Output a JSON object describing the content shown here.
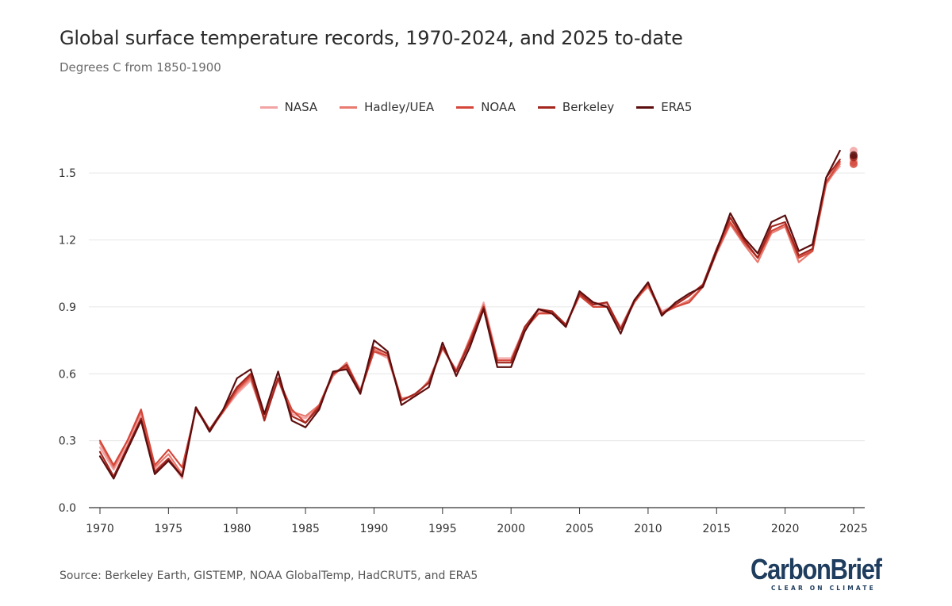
{
  "chart_data": {
    "type": "line",
    "title": "Global surface temperature records, 1970-2024, and 2025 to-date",
    "subtitle": "Degrees C from 1850-1900",
    "xlabel": "",
    "ylabel": "",
    "xlim": [
      1970,
      2025
    ],
    "ylim": [
      0,
      1.6
    ],
    "yticks": [
      0.0,
      0.3,
      0.6,
      0.9,
      1.2,
      1.5
    ],
    "ytick_labels": [
      "0.0",
      "0.3",
      "0.6",
      "0.9",
      "1.2",
      "1.5"
    ],
    "xticks": [
      1970,
      1975,
      1980,
      1985,
      1990,
      1995,
      2000,
      2005,
      2010,
      2015,
      2020,
      2025
    ],
    "xtick_labels": [
      "1970",
      "1975",
      "1980",
      "1985",
      "1990",
      "1995",
      "2000",
      "2005",
      "2010",
      "2015",
      "2020",
      "2025"
    ],
    "grid": true,
    "legend_position": "top-center",
    "x": [
      1970,
      1971,
      1972,
      1973,
      1974,
      1975,
      1976,
      1977,
      1978,
      1979,
      1980,
      1981,
      1982,
      1983,
      1984,
      1985,
      1986,
      1987,
      1988,
      1989,
      1990,
      1991,
      1992,
      1993,
      1994,
      1995,
      1996,
      1997,
      1998,
      1999,
      2000,
      2001,
      2002,
      2003,
      2004,
      2005,
      2006,
      2007,
      2008,
      2009,
      2010,
      2011,
      2012,
      2013,
      2014,
      2015,
      2016,
      2017,
      2018,
      2019,
      2020,
      2021,
      2022,
      2023,
      2024
    ],
    "series": [
      {
        "name": "NASA",
        "color": "#f2a3a3",
        "values": [
          0.27,
          0.17,
          0.28,
          0.42,
          0.17,
          0.22,
          0.13,
          0.45,
          0.34,
          0.43,
          0.51,
          0.57,
          0.4,
          0.57,
          0.42,
          0.4,
          0.46,
          0.6,
          0.64,
          0.53,
          0.7,
          0.67,
          0.48,
          0.51,
          0.56,
          0.71,
          0.62,
          0.75,
          0.92,
          0.67,
          0.67,
          0.81,
          0.88,
          0.88,
          0.82,
          0.96,
          0.92,
          0.91,
          0.81,
          0.93,
          1.0,
          0.88,
          0.91,
          0.95,
          1.0,
          1.15,
          1.27,
          1.19,
          1.12,
          1.24,
          1.26,
          1.12,
          1.16,
          1.46,
          1.53
        ],
        "end": 1.6
      },
      {
        "name": "Hadley/UEA",
        "color": "#e87a6f",
        "values": [
          0.29,
          0.18,
          0.3,
          0.43,
          0.18,
          0.24,
          0.15,
          0.44,
          0.35,
          0.43,
          0.52,
          0.58,
          0.4,
          0.58,
          0.43,
          0.41,
          0.46,
          0.59,
          0.65,
          0.52,
          0.71,
          0.68,
          0.49,
          0.5,
          0.57,
          0.72,
          0.61,
          0.76,
          0.91,
          0.66,
          0.66,
          0.8,
          0.87,
          0.88,
          0.82,
          0.95,
          0.91,
          0.92,
          0.8,
          0.93,
          0.99,
          0.87,
          0.9,
          0.93,
          0.99,
          1.14,
          1.27,
          1.18,
          1.1,
          1.23,
          1.26,
          1.1,
          1.15,
          1.45,
          1.54
        ],
        "end": 1.55
      },
      {
        "name": "NOAA",
        "color": "#d4473a",
        "values": [
          0.3,
          0.19,
          0.3,
          0.44,
          0.19,
          0.26,
          0.18,
          0.44,
          0.35,
          0.43,
          0.53,
          0.59,
          0.4,
          0.58,
          0.44,
          0.38,
          0.46,
          0.6,
          0.63,
          0.52,
          0.7,
          0.68,
          0.48,
          0.51,
          0.56,
          0.72,
          0.61,
          0.75,
          0.9,
          0.66,
          0.66,
          0.8,
          0.87,
          0.87,
          0.82,
          0.95,
          0.9,
          0.9,
          0.8,
          0.92,
          1.0,
          0.87,
          0.9,
          0.92,
          0.99,
          1.15,
          1.28,
          1.19,
          1.12,
          1.24,
          1.27,
          1.12,
          1.15,
          1.46,
          1.55
        ],
        "end": 1.54
      },
      {
        "name": "Berkeley",
        "color": "#a3271f",
        "values": [
          0.25,
          0.14,
          0.27,
          0.4,
          0.16,
          0.22,
          0.14,
          0.45,
          0.35,
          0.44,
          0.54,
          0.6,
          0.39,
          0.58,
          0.41,
          0.38,
          0.45,
          0.6,
          0.64,
          0.52,
          0.72,
          0.69,
          0.48,
          0.51,
          0.56,
          0.72,
          0.61,
          0.74,
          0.9,
          0.65,
          0.65,
          0.81,
          0.89,
          0.88,
          0.82,
          0.96,
          0.91,
          0.92,
          0.8,
          0.93,
          1.01,
          0.87,
          0.91,
          0.95,
          1.0,
          1.16,
          1.3,
          1.2,
          1.12,
          1.26,
          1.28,
          1.13,
          1.16,
          1.48,
          1.56
        ],
        "end": 1.57
      },
      {
        "name": "ERA5",
        "color": "#5c0e0e",
        "values": [
          0.23,
          0.13,
          0.26,
          0.39,
          0.15,
          0.21,
          0.14,
          0.45,
          0.34,
          0.44,
          0.58,
          0.62,
          0.42,
          0.61,
          0.39,
          0.36,
          0.44,
          0.61,
          0.62,
          0.51,
          0.75,
          0.7,
          0.46,
          0.5,
          0.54,
          0.74,
          0.59,
          0.72,
          0.89,
          0.63,
          0.63,
          0.79,
          0.89,
          0.87,
          0.81,
          0.97,
          0.92,
          0.9,
          0.78,
          0.93,
          1.01,
          0.86,
          0.92,
          0.96,
          0.99,
          1.15,
          1.32,
          1.21,
          1.14,
          1.28,
          1.31,
          1.15,
          1.18,
          1.48,
          1.6
        ],
        "end": 1.58
      }
    ],
    "source": "Source: Berkeley Earth, GISTEMP, NOAA GlobalTemp, HadCRUT5, and ERA5"
  },
  "logo": {
    "name": "CarbonBrief",
    "tagline": "CLEAR ON CLIMATE"
  }
}
